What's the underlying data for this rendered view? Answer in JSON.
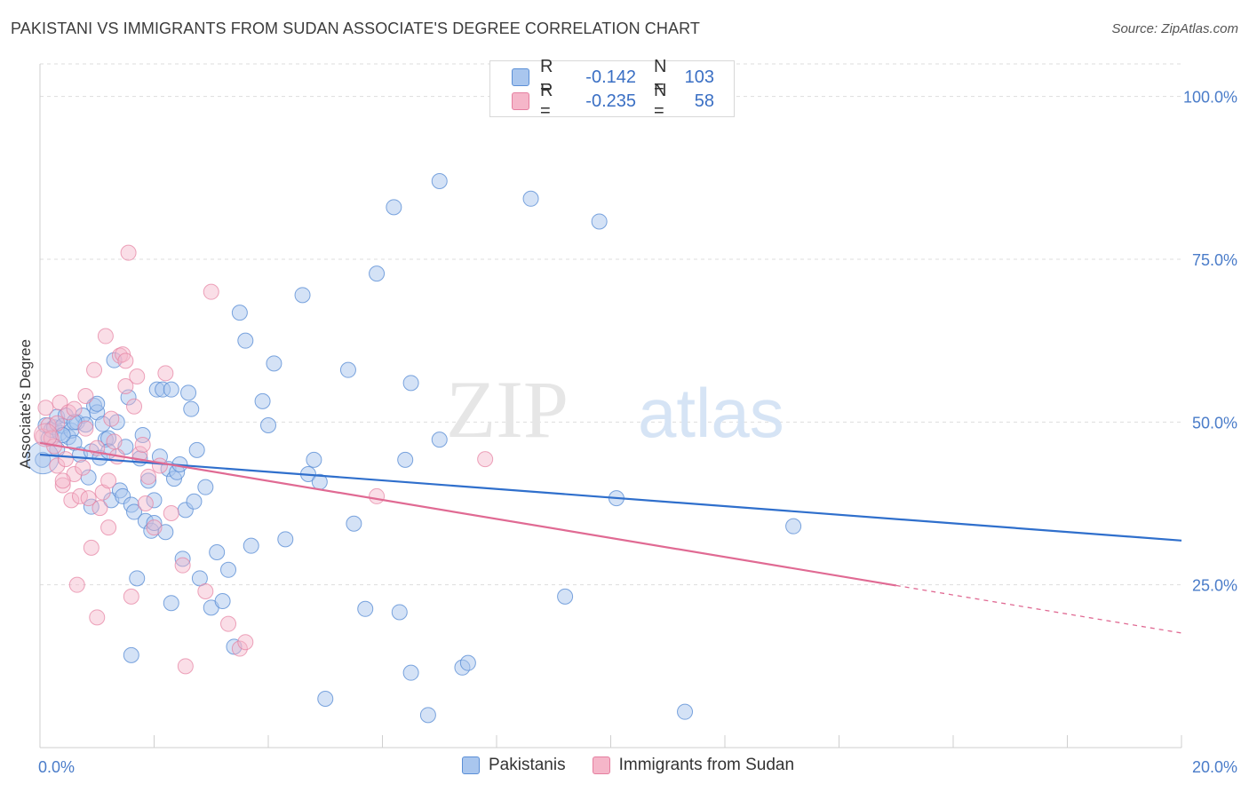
{
  "header": {
    "title": "PAKISTANI VS IMMIGRANTS FROM SUDAN ASSOCIATE'S DEGREE CORRELATION CHART",
    "source": "Source: ZipAtlas.com"
  },
  "watermark": {
    "zip": "ZIP",
    "atlas": "atlas"
  },
  "legend": {
    "rows": [
      {
        "r_label": "R =",
        "r_value": "-0.142",
        "n_label": "N =",
        "n_value": "103"
      },
      {
        "r_label": "R =",
        "r_value": "-0.235",
        "n_label": "N =",
        "n_value": "58"
      }
    ]
  },
  "colors": {
    "blue_fill": "#a9c6ee",
    "blue_stroke": "#5b8fd6",
    "blue_line": "#2f6fcc",
    "pink_fill": "#f5b6c9",
    "pink_stroke": "#e57fa0",
    "pink_line": "#e06a93",
    "tick_text": "#4a7cc9",
    "grid": "#dddddd"
  },
  "chart_data": {
    "type": "scatter",
    "title": "PAKISTANI VS IMMIGRANTS FROM SUDAN ASSOCIATE'S DEGREE CORRELATION CHART",
    "xlabel": "",
    "ylabel": "Associate's Degree",
    "xlim": [
      0,
      20
    ],
    "ylim": [
      0,
      105
    ],
    "x_tick_labels": [
      "0.0%",
      "20.0%"
    ],
    "y_ticks": [
      25,
      50,
      75,
      100
    ],
    "y_tick_labels": [
      "25.0%",
      "50.0%",
      "75.0%",
      "100.0%"
    ],
    "grid": true,
    "legend_position": "top-center",
    "series": [
      {
        "name": "Pakistanis",
        "color": "blue",
        "trend": {
          "x": [
            0,
            20
          ],
          "y": [
            45.0,
            31.8
          ],
          "dashed_from": null
        },
        "points": [
          [
            0.05,
            44.2
          ],
          [
            0.1,
            49.5
          ],
          [
            0.15,
            47.5
          ],
          [
            0.2,
            48.8
          ],
          [
            0.25,
            49.2
          ],
          [
            0.3,
            50.8
          ],
          [
            0.35,
            48.3
          ],
          [
            0.4,
            49.4
          ],
          [
            0.45,
            51.0
          ],
          [
            0.5,
            47.7
          ],
          [
            0.55,
            48.7
          ],
          [
            0.6,
            46.8
          ],
          [
            0.65,
            50.0
          ],
          [
            0.7,
            45.0
          ],
          [
            0.75,
            51.0
          ],
          [
            0.8,
            49.6
          ],
          [
            0.85,
            41.5
          ],
          [
            0.9,
            45.5
          ],
          [
            0.95,
            52.5
          ],
          [
            1.0,
            51.5
          ],
          [
            1.05,
            44.5
          ],
          [
            1.1,
            49.7
          ],
          [
            1.15,
            47.3
          ],
          [
            1.2,
            47.5
          ],
          [
            1.25,
            38.0
          ],
          [
            1.3,
            59.5
          ],
          [
            1.35,
            50.0
          ],
          [
            1.4,
            39.5
          ],
          [
            1.45,
            38.6
          ],
          [
            1.5,
            46.2
          ],
          [
            1.55,
            53.8
          ],
          [
            1.6,
            37.3
          ],
          [
            1.65,
            36.2
          ],
          [
            1.7,
            26.0
          ],
          [
            1.75,
            44.4
          ],
          [
            1.8,
            48.0
          ],
          [
            1.85,
            34.8
          ],
          [
            1.9,
            41.0
          ],
          [
            1.95,
            33.3
          ],
          [
            2.0,
            38.0
          ],
          [
            2.05,
            55.0
          ],
          [
            2.1,
            44.7
          ],
          [
            2.15,
            55.0
          ],
          [
            2.2,
            33.1
          ],
          [
            2.25,
            42.8
          ],
          [
            2.3,
            22.2
          ],
          [
            2.35,
            41.3
          ],
          [
            2.4,
            42.3
          ],
          [
            2.45,
            43.5
          ],
          [
            2.5,
            29.0
          ],
          [
            2.55,
            36.5
          ],
          [
            2.6,
            54.5
          ],
          [
            2.65,
            52.0
          ],
          [
            2.7,
            37.8
          ],
          [
            2.75,
            45.7
          ],
          [
            2.8,
            26.0
          ],
          [
            2.9,
            40.0
          ],
          [
            3.0,
            21.5
          ],
          [
            3.1,
            30.0
          ],
          [
            3.2,
            22.5
          ],
          [
            3.3,
            27.3
          ],
          [
            3.5,
            66.8
          ],
          [
            3.6,
            62.5
          ],
          [
            3.7,
            31.0
          ],
          [
            3.9,
            53.2
          ],
          [
            4.0,
            49.5
          ],
          [
            4.1,
            59.0
          ],
          [
            4.3,
            32.0
          ],
          [
            4.6,
            69.5
          ],
          [
            4.7,
            42.0
          ],
          [
            4.8,
            44.2
          ],
          [
            4.9,
            40.8
          ],
          [
            5.0,
            7.5
          ],
          [
            5.4,
            58.0
          ],
          [
            5.5,
            34.4
          ],
          [
            5.7,
            21.3
          ],
          [
            5.9,
            72.8
          ],
          [
            6.2,
            83.0
          ],
          [
            6.3,
            20.8
          ],
          [
            6.4,
            44.2
          ],
          [
            6.5,
            56.0
          ],
          [
            6.8,
            5.0
          ],
          [
            7.0,
            87.0
          ],
          [
            7.0,
            47.3
          ],
          [
            7.4,
            12.3
          ],
          [
            7.5,
            13.0
          ],
          [
            8.6,
            84.3
          ],
          [
            9.2,
            23.2
          ],
          [
            9.8,
            80.8
          ],
          [
            10.1,
            38.3
          ],
          [
            11.3,
            5.5
          ],
          [
            13.2,
            34.0
          ],
          [
            1.6,
            14.2
          ],
          [
            2.0,
            34.5
          ],
          [
            3.4,
            15.5
          ],
          [
            0.3,
            45.8
          ],
          [
            0.6,
            50.0
          ],
          [
            1.0,
            52.8
          ],
          [
            6.5,
            11.5
          ],
          [
            0.9,
            37.0
          ],
          [
            2.3,
            55.0
          ],
          [
            1.2,
            45.5
          ],
          [
            0.4,
            48.0
          ]
        ]
      },
      {
        "name": "Immigrants from Sudan",
        "color": "pink",
        "trend": {
          "x": [
            0,
            20
          ],
          "y": [
            46.8,
            17.6
          ],
          "dashed_from": 15
        },
        "points": [
          [
            0.05,
            47.8
          ],
          [
            0.1,
            52.2
          ],
          [
            0.15,
            49.5
          ],
          [
            0.2,
            47.5
          ],
          [
            0.25,
            46.3
          ],
          [
            0.3,
            43.3
          ],
          [
            0.35,
            53.0
          ],
          [
            0.4,
            40.3
          ],
          [
            0.45,
            44.3
          ],
          [
            0.5,
            51.5
          ],
          [
            0.55,
            38.0
          ],
          [
            0.6,
            42.0
          ],
          [
            0.65,
            25.0
          ],
          [
            0.7,
            38.6
          ],
          [
            0.75,
            43.0
          ],
          [
            0.8,
            54.0
          ],
          [
            0.85,
            38.3
          ],
          [
            0.9,
            30.7
          ],
          [
            0.95,
            58.0
          ],
          [
            1.0,
            20.0
          ],
          [
            1.05,
            36.8
          ],
          [
            1.1,
            39.2
          ],
          [
            1.15,
            63.2
          ],
          [
            1.2,
            41.0
          ],
          [
            1.25,
            50.5
          ],
          [
            1.3,
            47.0
          ],
          [
            1.35,
            44.7
          ],
          [
            1.4,
            60.2
          ],
          [
            1.45,
            60.4
          ],
          [
            1.5,
            59.4
          ],
          [
            1.55,
            76.0
          ],
          [
            1.6,
            23.2
          ],
          [
            1.65,
            52.4
          ],
          [
            1.7,
            57.0
          ],
          [
            1.75,
            45.1
          ],
          [
            1.8,
            46.5
          ],
          [
            1.85,
            37.5
          ],
          [
            1.9,
            41.6
          ],
          [
            2.0,
            33.8
          ],
          [
            2.1,
            43.3
          ],
          [
            2.2,
            57.5
          ],
          [
            2.5,
            28.0
          ],
          [
            2.55,
            12.5
          ],
          [
            2.9,
            24.0
          ],
          [
            3.0,
            70.0
          ],
          [
            3.3,
            19.0
          ],
          [
            3.5,
            15.2
          ],
          [
            3.6,
            16.2
          ],
          [
            5.9,
            38.6
          ],
          [
            7.8,
            44.3
          ],
          [
            0.3,
            49.8
          ],
          [
            0.6,
            52.0
          ],
          [
            1.0,
            46.0
          ],
          [
            1.5,
            55.5
          ],
          [
            0.8,
            49.0
          ],
          [
            2.3,
            36.0
          ],
          [
            1.2,
            33.8
          ],
          [
            0.4,
            41.0
          ]
        ]
      }
    ]
  }
}
